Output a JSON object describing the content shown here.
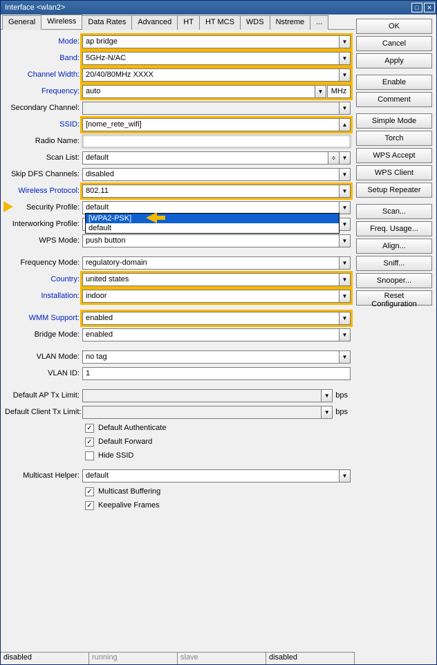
{
  "window": {
    "title": "Interface <wlan2>"
  },
  "tabs": [
    "General",
    "Wireless",
    "Data Rates",
    "Advanced",
    "HT",
    "HT MCS",
    "WDS",
    "Nstreme",
    "..."
  ],
  "active_tab": 1,
  "colors": {
    "highlight": "#f5b800",
    "link": "#0020c0",
    "titlebar": "#2a5a95",
    "dropdown_sel": "#1060d0"
  },
  "fields": {
    "mode": {
      "label": "Mode:",
      "value": "ap bridge",
      "blue": true,
      "hl": true
    },
    "band": {
      "label": "Band:",
      "value": "5GHz-N/AC",
      "blue": true,
      "hl": true
    },
    "channel_width": {
      "label": "Channel Width:",
      "value": "20/40/80MHz XXXX",
      "blue": true,
      "hl": true
    },
    "frequency": {
      "label": "Frequency:",
      "value": "auto",
      "blue": true,
      "hl": true,
      "unit": "MHz"
    },
    "secondary_channel": {
      "label": "Secondary Channel:",
      "value": "",
      "blue": false,
      "hl": false,
      "readonly": true
    },
    "ssid": {
      "label": "SSID:",
      "value": "[nome_rete_wifi]",
      "blue": true,
      "hl": true,
      "up": true
    },
    "radio_name": {
      "label": "Radio Name:",
      "value": "",
      "blue": false,
      "hl": false,
      "blurred": true,
      "nobtn": true
    },
    "scan_list": {
      "label": "Scan List:",
      "value": "default",
      "blue": false,
      "hl": false,
      "double": true
    },
    "skip_dfs": {
      "label": "Skip DFS Channels:",
      "value": "disabled",
      "blue": false,
      "hl": false
    },
    "wireless_protocol": {
      "label": "Wireless Protocol:",
      "value": "802.11",
      "blue": true,
      "hl": true
    },
    "security_profile": {
      "label": "Security Profile:",
      "value": "default",
      "blue": false,
      "hl": false,
      "arrow": true,
      "dropdown_options": [
        "[WPA2-PSK]",
        "default"
      ],
      "dropdown_sel": 0
    },
    "interworking": {
      "label": "Interworking Profile:",
      "value": "",
      "blue": false,
      "hl": false
    },
    "wps_mode": {
      "label": "WPS Mode:",
      "value": "push button",
      "blue": false,
      "hl": false
    },
    "frequency_mode": {
      "label": "Frequency Mode:",
      "value": "regulatory-domain",
      "blue": false,
      "hl": false
    },
    "country": {
      "label": "Country:",
      "value": "united states",
      "blue": true,
      "hl": true
    },
    "installation": {
      "label": "Installation:",
      "value": "indoor",
      "blue": true,
      "hl": true
    },
    "wmm_support": {
      "label": "WMM Support:",
      "value": "enabled",
      "blue": true,
      "hl": true
    },
    "bridge_mode": {
      "label": "Bridge Mode:",
      "value": "enabled",
      "blue": false,
      "hl": false
    },
    "vlan_mode": {
      "label": "VLAN Mode:",
      "value": "no tag",
      "blue": false,
      "hl": false
    },
    "vlan_id": {
      "label": "VLAN ID:",
      "value": "1",
      "blue": false,
      "hl": false,
      "nobtn": true
    },
    "default_ap_tx": {
      "label": "Default AP Tx Limit:",
      "value": "",
      "blue": false,
      "hl": false,
      "unit_txt": "bps",
      "exp": true,
      "readonly": true
    },
    "default_client_tx": {
      "label": "Default Client Tx Limit:",
      "value": "",
      "blue": false,
      "hl": false,
      "unit_txt": "bps",
      "exp": true,
      "readonly": true
    },
    "multicast_helper": {
      "label": "Multicast Helper:",
      "value": "default",
      "blue": false,
      "hl": false
    }
  },
  "checks": {
    "default_authenticate": {
      "label": "Default Authenticate",
      "checked": true
    },
    "default_forward": {
      "label": "Default Forward",
      "checked": true
    },
    "hide_ssid": {
      "label": "Hide SSID",
      "checked": false
    },
    "multicast_buffering": {
      "label": "Multicast Buffering",
      "checked": true
    },
    "keepalive_frames": {
      "label": "Keepalive Frames",
      "checked": true
    }
  },
  "buttons": [
    "OK",
    "Cancel",
    "Apply",
    "Enable",
    "Comment",
    "Simple Mode",
    "Torch",
    "WPS Accept",
    "WPS Client",
    "Setup Repeater",
    "Scan...",
    "Freq. Usage...",
    "Align...",
    "Sniff...",
    "Snooper...",
    "Reset Configuration"
  ],
  "button_gaps": [
    3,
    5,
    10
  ],
  "status": [
    {
      "text": "disabled",
      "on": true
    },
    {
      "text": "running",
      "on": false
    },
    {
      "text": "slave",
      "on": false
    },
    {
      "text": "disabled",
      "on": true
    }
  ]
}
